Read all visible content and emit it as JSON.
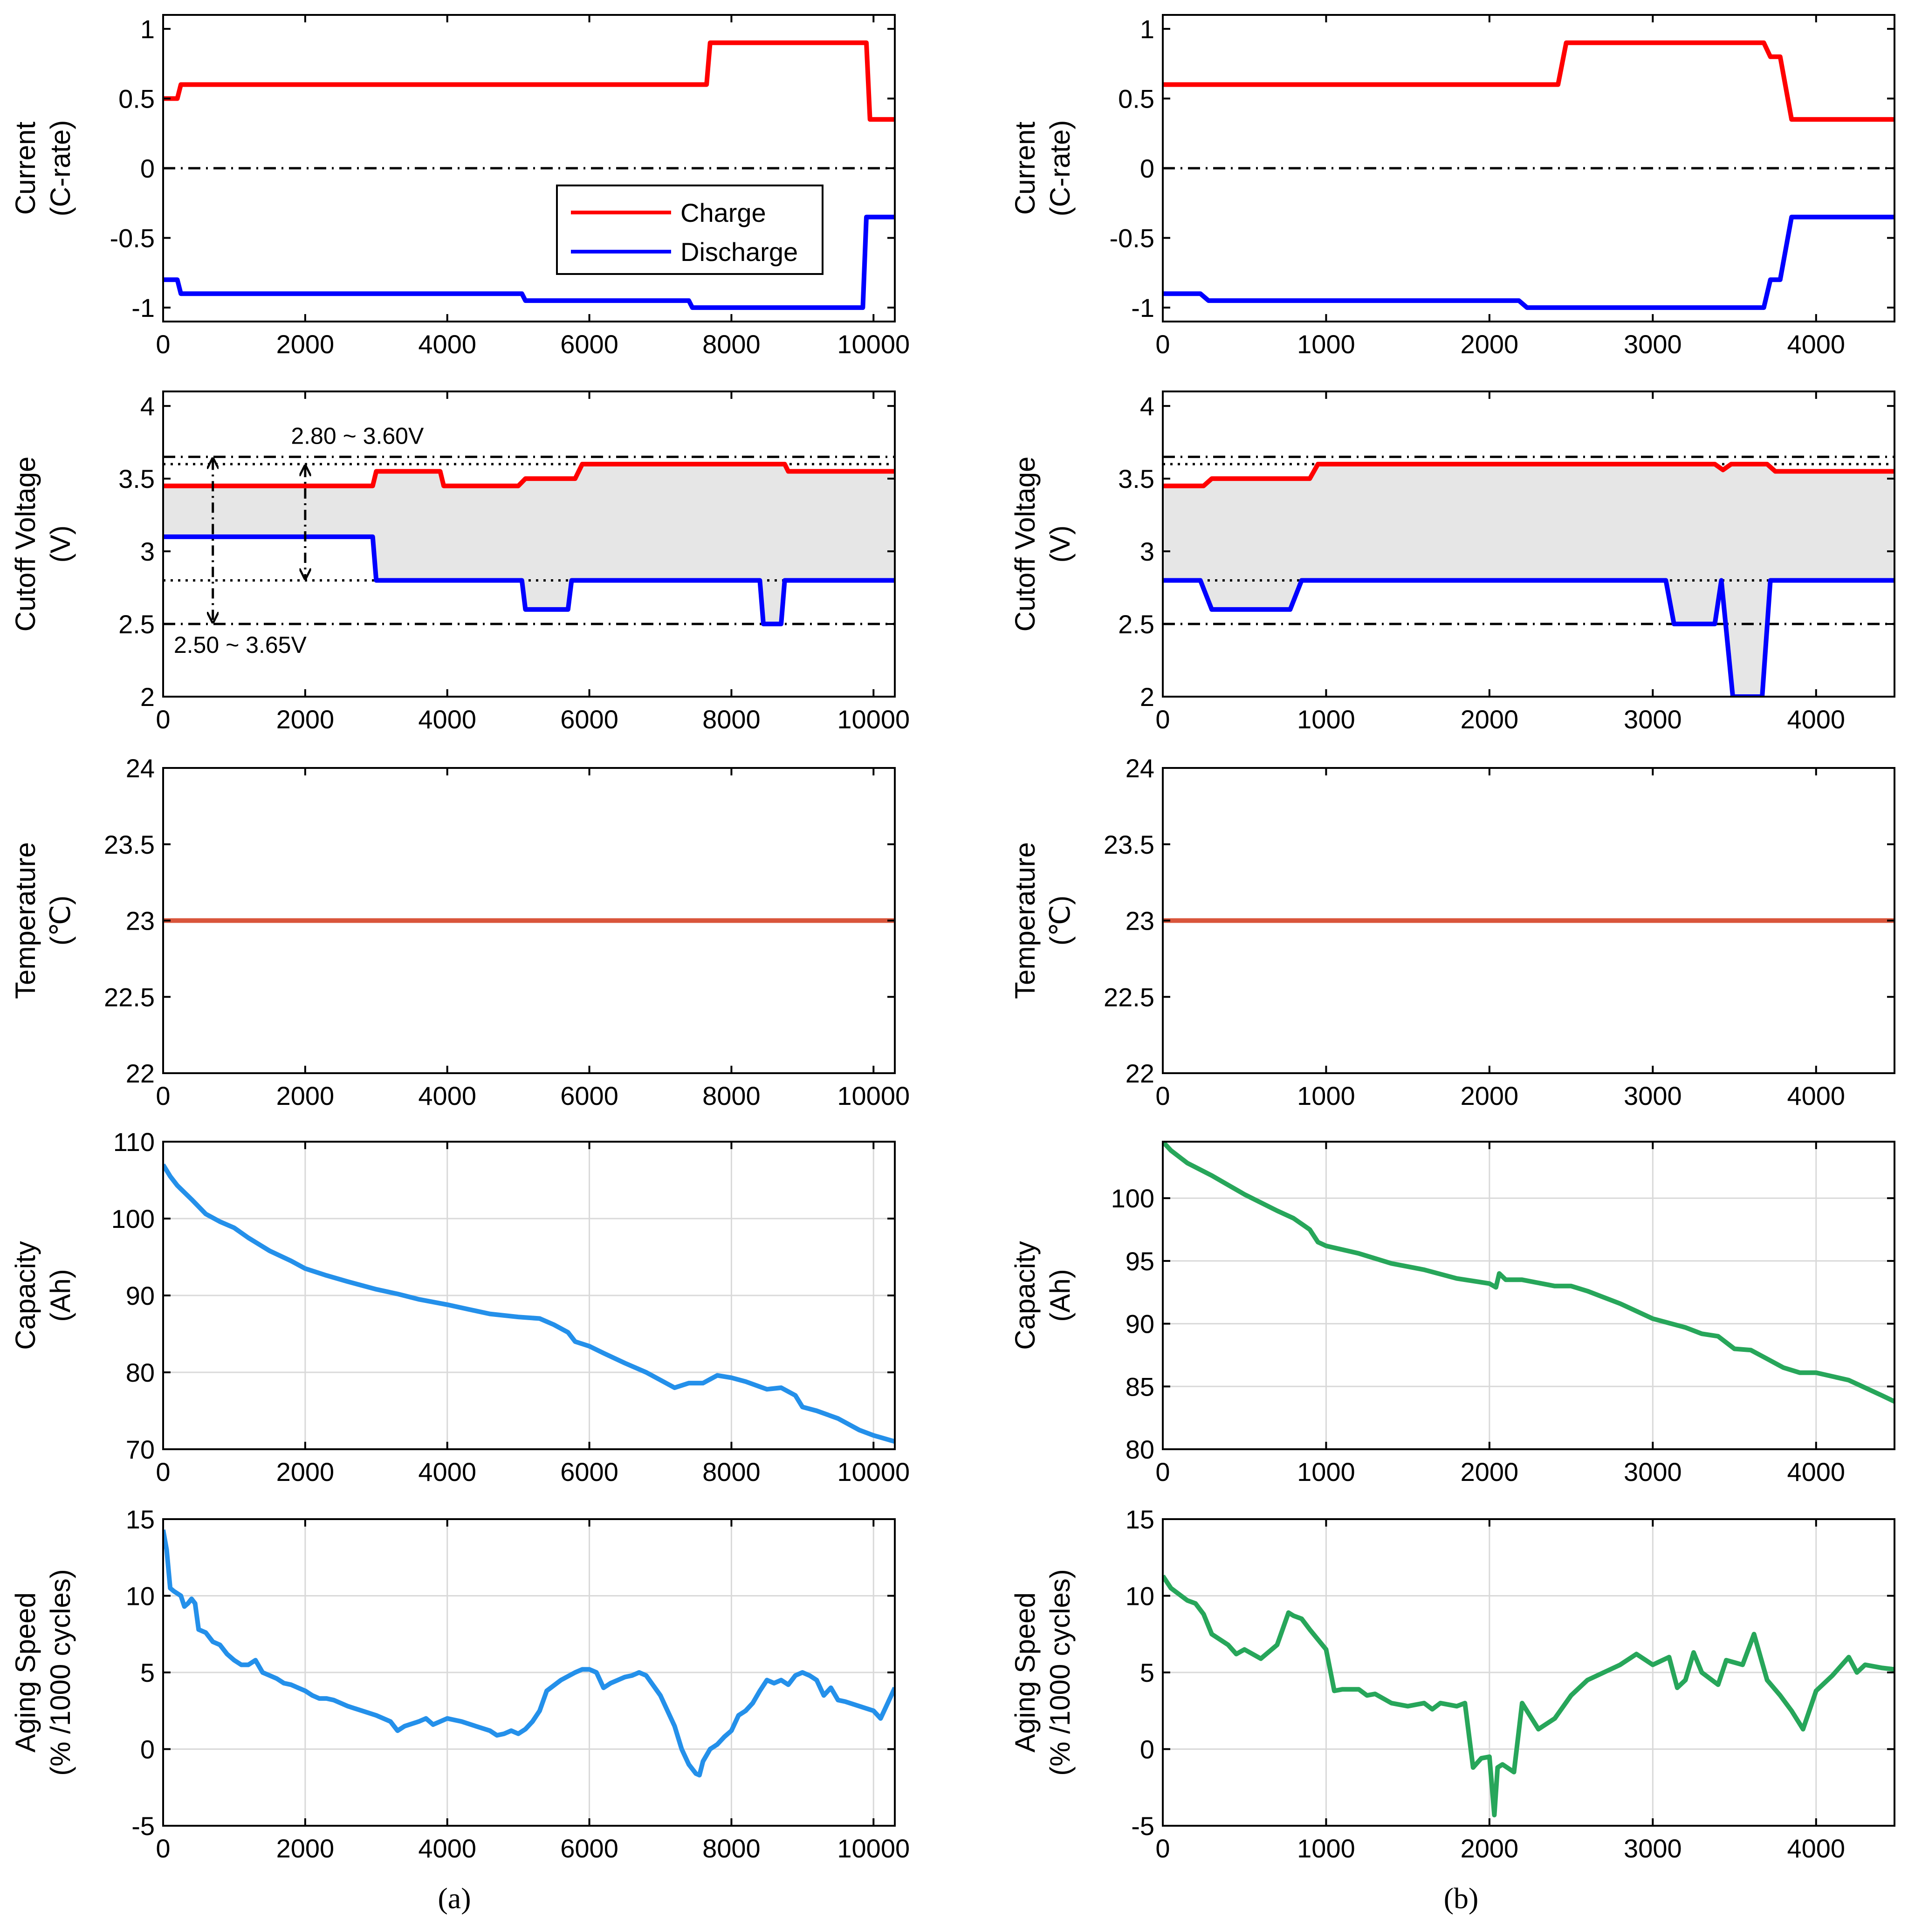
{
  "colors": {
    "charge": "#ff0000",
    "discharge": "#0000ff",
    "temperature": "#d9553b",
    "capacity_a": "#2490ea",
    "capacity_b": "#27a65a",
    "zero_line": "#000000",
    "band_fill": "#e6e6e6",
    "grid": "#d9d9d9"
  },
  "panel_labels": {
    "a": "(a)",
    "b": "(b)"
  },
  "legend": {
    "charge": "Charge",
    "discharge": "Discharge"
  },
  "annotations": {
    "inner_range": "2.80 ~ 3.60V",
    "outer_range": "2.50 ~ 3.65V"
  },
  "chart_data": [
    {
      "id": "a1",
      "type": "line",
      "column": "a",
      "ylabel": [
        "Current",
        "(C-rate)"
      ],
      "xlim": [
        0,
        10300
      ],
      "ylim": [
        -1.1,
        1.1
      ],
      "xticks": [
        0,
        2000,
        4000,
        6000,
        8000,
        10000
      ],
      "yticks": [
        -1,
        -0.5,
        0,
        0.5,
        1
      ],
      "grid": false,
      "legend_position": "center",
      "hlines": [
        {
          "y": 0,
          "style": "dashdot"
        }
      ],
      "series": [
        {
          "name": "Charge",
          "color_key": "charge",
          "x": [
            0,
            200,
            250,
            7650,
            7700,
            9900,
            9950,
            10300
          ],
          "y": [
            0.5,
            0.5,
            0.6,
            0.6,
            0.9,
            0.9,
            0.35,
            0.35
          ]
        },
        {
          "name": "Discharge",
          "color_key": "discharge",
          "x": [
            0,
            200,
            250,
            5050,
            5100,
            7400,
            7450,
            9850,
            9900,
            10300
          ],
          "y": [
            -0.8,
            -0.8,
            -0.9,
            -0.9,
            -0.95,
            -0.95,
            -1.0,
            -1.0,
            -0.35,
            -0.35
          ]
        }
      ]
    },
    {
      "id": "b1",
      "type": "line",
      "column": "b",
      "ylabel": [
        "Current",
        "(C-rate)"
      ],
      "xlim": [
        0,
        4480
      ],
      "ylim": [
        -1.1,
        1.1
      ],
      "xticks": [
        0,
        1000,
        2000,
        3000,
        4000
      ],
      "yticks": [
        -1,
        -0.5,
        0,
        0.5,
        1
      ],
      "grid": false,
      "hlines": [
        {
          "y": 0,
          "style": "dashdot"
        }
      ],
      "series": [
        {
          "name": "Charge",
          "color_key": "charge",
          "x": [
            0,
            2420,
            2470,
            3680,
            3720,
            3780,
            3850,
            4480
          ],
          "y": [
            0.6,
            0.6,
            0.9,
            0.9,
            0.8,
            0.8,
            0.35,
            0.35
          ]
        },
        {
          "name": "Discharge",
          "color_key": "discharge",
          "x": [
            0,
            230,
            280,
            2180,
            2230,
            3680,
            3720,
            3780,
            3850,
            4480
          ],
          "y": [
            -0.9,
            -0.9,
            -0.95,
            -0.95,
            -1.0,
            -1.0,
            -0.8,
            -0.8,
            -0.35,
            -0.35
          ]
        }
      ]
    },
    {
      "id": "a2",
      "type": "area",
      "column": "a",
      "ylabel": [
        "Cutoff Voltage",
        "(V)"
      ],
      "xlim": [
        0,
        10300
      ],
      "ylim": [
        2,
        4.1
      ],
      "xticks": [
        0,
        2000,
        4000,
        6000,
        8000,
        10000
      ],
      "yticks": [
        2,
        2.5,
        3,
        3.5,
        4
      ],
      "grid": false,
      "hlines": [
        {
          "y": 3.65,
          "style": "dashdot"
        },
        {
          "y": 3.6,
          "style": "dotted"
        },
        {
          "y": 2.8,
          "style": "dotted"
        },
        {
          "y": 2.5,
          "style": "dashdot"
        }
      ],
      "series": [
        {
          "name": "Charge",
          "color_key": "charge",
          "x": [
            0,
            2950,
            3000,
            3900,
            3950,
            5000,
            5100,
            5800,
            5900,
            8750,
            8800,
            10300
          ],
          "y": [
            3.45,
            3.45,
            3.55,
            3.55,
            3.45,
            3.45,
            3.5,
            3.5,
            3.6,
            3.6,
            3.55,
            3.55
          ]
        },
        {
          "name": "Discharge",
          "color_key": "discharge",
          "x": [
            0,
            2950,
            3000,
            5050,
            5100,
            5700,
            5750,
            8400,
            8450,
            8700,
            8750,
            10300
          ],
          "y": [
            3.1,
            3.1,
            2.8,
            2.8,
            2.6,
            2.6,
            2.8,
            2.8,
            2.5,
            2.5,
            2.8,
            2.8
          ]
        }
      ]
    },
    {
      "id": "b2",
      "type": "area",
      "column": "b",
      "ylabel": [
        "Cutoff Voltage",
        "(V)"
      ],
      "xlim": [
        0,
        4480
      ],
      "ylim": [
        2,
        4.1
      ],
      "xticks": [
        0,
        1000,
        2000,
        3000,
        4000
      ],
      "yticks": [
        2,
        2.5,
        3,
        3.5,
        4
      ],
      "grid": false,
      "hlines": [
        {
          "y": 3.65,
          "style": "dashdot"
        },
        {
          "y": 3.6,
          "style": "dotted"
        },
        {
          "y": 2.8,
          "style": "dotted"
        },
        {
          "y": 2.5,
          "style": "dashdot"
        }
      ],
      "series": [
        {
          "name": "Charge",
          "color_key": "charge",
          "x": [
            0,
            250,
            300,
            900,
            950,
            3380,
            3430,
            3480,
            3700,
            3750,
            4480
          ],
          "y": [
            3.45,
            3.45,
            3.5,
            3.5,
            3.6,
            3.6,
            3.56,
            3.6,
            3.6,
            3.55,
            3.55
          ]
        },
        {
          "name": "Discharge",
          "color_key": "discharge",
          "x": [
            0,
            230,
            300,
            780,
            850,
            3080,
            3130,
            3380,
            3420,
            3490,
            3670,
            3720,
            4480
          ],
          "y": [
            2.8,
            2.8,
            2.6,
            2.6,
            2.8,
            2.8,
            2.5,
            2.5,
            2.8,
            2.0,
            2.0,
            2.8,
            2.8
          ]
        }
      ]
    },
    {
      "id": "a3",
      "type": "line",
      "column": "a",
      "ylabel": [
        "Temperature",
        "(℃)"
      ],
      "xlim": [
        0,
        10300
      ],
      "ylim": [
        22,
        24
      ],
      "xticks": [
        0,
        2000,
        4000,
        6000,
        8000,
        10000
      ],
      "yticks": [
        22,
        22.5,
        23,
        23.5,
        24
      ],
      "grid": false,
      "series": [
        {
          "name": "Temperature",
          "color_key": "temperature",
          "x": [
            0,
            10300
          ],
          "y": [
            23,
            23
          ]
        }
      ]
    },
    {
      "id": "b3",
      "type": "line",
      "column": "b",
      "ylabel": [
        "Temperature",
        "(℃)"
      ],
      "xlim": [
        0,
        4480
      ],
      "ylim": [
        22,
        24
      ],
      "xticks": [
        0,
        1000,
        2000,
        3000,
        4000
      ],
      "yticks": [
        22,
        22.5,
        23,
        23.5,
        24
      ],
      "grid": false,
      "series": [
        {
          "name": "Temperature",
          "color_key": "temperature",
          "x": [
            0,
            4480
          ],
          "y": [
            23,
            23
          ]
        }
      ]
    },
    {
      "id": "a4",
      "type": "line",
      "column": "a",
      "ylabel": [
        "Capacity",
        "(Ah)"
      ],
      "xlim": [
        0,
        10300
      ],
      "ylim": [
        70,
        110
      ],
      "xticks": [
        0,
        2000,
        4000,
        6000,
        8000,
        10000
      ],
      "yticks": [
        70,
        80,
        90,
        100,
        110
      ],
      "grid": true,
      "series": [
        {
          "name": "Capacity",
          "color_key": "capacity_a",
          "x": [
            0,
            100,
            200,
            400,
            600,
            800,
            1000,
            1200,
            1500,
            1800,
            2000,
            2300,
            2600,
            3000,
            3300,
            3600,
            4000,
            4300,
            4600,
            5000,
            5300,
            5500,
            5700,
            5800,
            6000,
            6200,
            6500,
            6800,
            7000,
            7200,
            7400,
            7600,
            7800,
            8000,
            8200,
            8500,
            8700,
            8900,
            9000,
            9200,
            9500,
            9800,
            10000,
            10300
          ],
          "y": [
            107,
            105.5,
            104.3,
            102.5,
            100.6,
            99.6,
            98.8,
            97.5,
            95.8,
            94.5,
            93.5,
            92.6,
            91.8,
            90.8,
            90.2,
            89.5,
            88.8,
            88.2,
            87.6,
            87.2,
            87.0,
            86.2,
            85.2,
            84.0,
            83.4,
            82.5,
            81.2,
            80.0,
            79.0,
            78.0,
            78.6,
            78.6,
            79.6,
            79.3,
            78.8,
            77.8,
            78.0,
            77.0,
            75.5,
            75.0,
            74.0,
            72.5,
            71.8,
            71.0
          ]
        }
      ]
    },
    {
      "id": "b4",
      "type": "line",
      "column": "b",
      "ylabel": [
        "Capacity",
        "(Ah)"
      ],
      "xlim": [
        0,
        4480
      ],
      "ylim": [
        80,
        104.5
      ],
      "xticks": [
        0,
        1000,
        2000,
        3000,
        4000
      ],
      "yticks": [
        80,
        85,
        90,
        95,
        100
      ],
      "grid": true,
      "series": [
        {
          "name": "Capacity",
          "color_key": "capacity_b",
          "x": [
            0,
            50,
            150,
            300,
            500,
            700,
            800,
            900,
            950,
            1000,
            1200,
            1400,
            1600,
            1800,
            2000,
            2040,
            2060,
            2100,
            2200,
            2400,
            2500,
            2600,
            2800,
            3000,
            3200,
            3300,
            3400,
            3500,
            3600,
            3700,
            3800,
            3900,
            4000,
            4200,
            4400,
            4480
          ],
          "y": [
            104.5,
            103.8,
            102.8,
            101.8,
            100.3,
            99.0,
            98.4,
            97.5,
            96.5,
            96.2,
            95.6,
            94.8,
            94.3,
            93.6,
            93.2,
            92.9,
            94.0,
            93.5,
            93.5,
            93.0,
            93.0,
            92.6,
            91.6,
            90.4,
            89.7,
            89.2,
            89.0,
            88.0,
            87.9,
            87.2,
            86.5,
            86.1,
            86.1,
            85.5,
            84.3,
            83.8
          ]
        }
      ]
    },
    {
      "id": "a5",
      "type": "line",
      "column": "a",
      "ylabel": [
        "Aging Speed",
        "(% /1000 cycles)"
      ],
      "xlim": [
        0,
        10300
      ],
      "ylim": [
        -5,
        15
      ],
      "xticks": [
        0,
        2000,
        4000,
        6000,
        8000,
        10000
      ],
      "yticks": [
        -5,
        0,
        5,
        10,
        15
      ],
      "grid": true,
      "series": [
        {
          "name": "Aging Speed",
          "color_key": "capacity_a",
          "x": [
            0,
            50,
            100,
            150,
            250,
            300,
            350,
            400,
            450,
            500,
            600,
            700,
            800,
            900,
            1000,
            1100,
            1200,
            1300,
            1400,
            1500,
            1600,
            1700,
            1800,
            1900,
            2000,
            2100,
            2200,
            2300,
            2400,
            2500,
            2600,
            2800,
            3000,
            3200,
            3300,
            3400,
            3600,
            3700,
            3800,
            3900,
            4000,
            4100,
            4200,
            4400,
            4600,
            4700,
            4800,
            4900,
            5000,
            5100,
            5200,
            5300,
            5400,
            5600,
            5800,
            5900,
            6000,
            6100,
            6200,
            6300,
            6500,
            6600,
            6700,
            6800,
            7000,
            7200,
            7300,
            7400,
            7500,
            7550,
            7600,
            7700,
            7800,
            7900,
            8000,
            8100,
            8200,
            8300,
            8400,
            8500,
            8600,
            8700,
            8800,
            8900,
            9000,
            9100,
            9200,
            9300,
            9400,
            9500,
            9600,
            9800,
            10000,
            10100,
            10200,
            10300
          ],
          "y": [
            14.3,
            13.0,
            10.5,
            10.3,
            10.0,
            9.3,
            9.5,
            9.8,
            9.5,
            7.8,
            7.6,
            7.0,
            6.8,
            6.2,
            5.8,
            5.5,
            5.5,
            5.8,
            5.0,
            4.8,
            4.6,
            4.3,
            4.2,
            4.0,
            3.8,
            3.5,
            3.3,
            3.3,
            3.2,
            3.0,
            2.8,
            2.5,
            2.2,
            1.8,
            1.2,
            1.5,
            1.8,
            2.0,
            1.6,
            1.8,
            2.0,
            1.9,
            1.8,
            1.5,
            1.2,
            0.9,
            1.0,
            1.2,
            1.0,
            1.3,
            1.8,
            2.5,
            3.8,
            4.5,
            5.0,
            5.2,
            5.2,
            5.0,
            4.0,
            4.3,
            4.7,
            4.8,
            5.0,
            4.8,
            3.5,
            1.5,
            0.0,
            -1.0,
            -1.6,
            -1.7,
            -0.8,
            0.0,
            0.3,
            0.8,
            1.2,
            2.2,
            2.5,
            3.0,
            3.8,
            4.5,
            4.3,
            4.5,
            4.2,
            4.8,
            5.0,
            4.8,
            4.5,
            3.5,
            4.0,
            3.2,
            3.1,
            2.8,
            2.5,
            2.0,
            3.0,
            4.0
          ]
        }
      ]
    },
    {
      "id": "b5",
      "type": "line",
      "column": "b",
      "ylabel": [
        "Aging Speed",
        "(% /1000 cycles)"
      ],
      "xlim": [
        0,
        4480
      ],
      "ylim": [
        -5,
        15
      ],
      "xticks": [
        0,
        1000,
        2000,
        3000,
        4000
      ],
      "yticks": [
        -5,
        0,
        5,
        10,
        15
      ],
      "grid": true,
      "series": [
        {
          "name": "Aging Speed",
          "color_key": "capacity_b",
          "x": [
            0,
            50,
            150,
            200,
            250,
            300,
            400,
            450,
            500,
            600,
            700,
            770,
            800,
            850,
            900,
            1000,
            1050,
            1100,
            1200,
            1250,
            1300,
            1400,
            1500,
            1600,
            1650,
            1700,
            1800,
            1850,
            1900,
            1950,
            2000,
            2030,
            2050,
            2080,
            2150,
            2200,
            2300,
            2400,
            2500,
            2600,
            2700,
            2800,
            2900,
            3000,
            3100,
            3150,
            3200,
            3250,
            3300,
            3400,
            3450,
            3550,
            3620,
            3700,
            3780,
            3850,
            3920,
            4000,
            4100,
            4200,
            4250,
            4300,
            4400,
            4480
          ],
          "y": [
            11.3,
            10.5,
            9.7,
            9.5,
            8.8,
            7.5,
            6.8,
            6.2,
            6.5,
            5.9,
            6.8,
            8.9,
            8.7,
            8.5,
            7.8,
            6.5,
            3.8,
            3.9,
            3.9,
            3.5,
            3.6,
            3.0,
            2.8,
            3.0,
            2.6,
            3.0,
            2.8,
            3.0,
            -1.2,
            -0.6,
            -0.5,
            -4.3,
            -1.2,
            -1.0,
            -1.5,
            3.0,
            1.3,
            2.0,
            3.5,
            4.5,
            5.0,
            5.5,
            6.2,
            5.5,
            6.0,
            4.0,
            4.5,
            6.3,
            5.0,
            4.2,
            5.8,
            5.5,
            7.5,
            4.5,
            3.5,
            2.5,
            1.3,
            3.8,
            4.8,
            6.0,
            5.0,
            5.5,
            5.3,
            5.2
          ]
        }
      ]
    }
  ]
}
